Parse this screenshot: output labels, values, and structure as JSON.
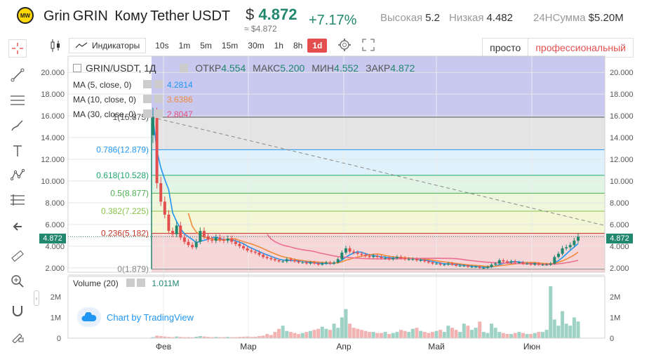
{
  "header": {
    "logo_text": "MW",
    "coin_name": "Grin",
    "coin_ticker": "GRIN",
    "vs_label": "Кому",
    "vs_name": "Tether",
    "vs_ticker": "USDT",
    "price_symbol": "$",
    "price": "4.872",
    "price_sub": "≈ $4.872",
    "change": "+7.17%",
    "high_label": "Высокая",
    "high": "5.2",
    "low_label": "Низкая",
    "low": "4.482",
    "vol_label": "24HСумма",
    "vol": "$5.20M"
  },
  "toolbar": {
    "indicators_label": "Индикаторы",
    "intervals": [
      "10s",
      "1m",
      "5m",
      "15m",
      "30m",
      "1h",
      "8h",
      "1d"
    ],
    "active_interval": "1d"
  },
  "mode": {
    "simple": "просто",
    "pro": "профессиональный"
  },
  "legend": {
    "symbol": "GRIN/USDT, 1Д",
    "open_label": "ОТКР",
    "open": "4.554",
    "high_label": "МАКС",
    "high": "5.200",
    "low_label": "МИН",
    "low": "4.552",
    "close_label": "ЗАКР",
    "close": "4.872",
    "ma5_label": "MA (5, close, 0)",
    "ma5": "4.2814",
    "ma10_label": "MA (10, close, 0)",
    "ma10": "3.6386",
    "ma30_label": "MA (30, close, 0)",
    "ma30": "2.8047",
    "volume_label": "Volume (20)",
    "volume": "1.011M",
    "watermark": "Chart by TradingView",
    "last_price_tag": "4.872"
  },
  "colors": {
    "up": "#21876e",
    "down": "#e34f4f",
    "ma5": "#2196f3",
    "ma10": "#f08a3c",
    "ma30": "#ec6f91",
    "band_top": "#c9c9f0"
  },
  "chart_data": {
    "type": "candlestick",
    "y_ticks": [
      "20.000",
      "18.000",
      "16.000",
      "14.000",
      "12.000",
      "10.000",
      "8.000",
      "6.000",
      "4.000",
      "2.000"
    ],
    "x_ticks": [
      "Фев",
      "Мар",
      "Апр",
      "Май",
      "Июн"
    ],
    "volume_ticks": [
      "2M",
      "1M",
      "0"
    ],
    "ylim": [
      1.6,
      21.5
    ],
    "fib_levels": [
      {
        "label": "1(15.875)",
        "value": 15.875,
        "color": "#555555",
        "fill": "#e4e4e4"
      },
      {
        "label": "0.786(12.879)",
        "value": 12.879,
        "color": "#2196f3",
        "fill": "#dff1fb"
      },
      {
        "label": "0.618(10.528)",
        "value": 10.528,
        "color": "#21a86e",
        "fill": "#e2f5e4"
      },
      {
        "label": "0.5(8.877)",
        "value": 8.877,
        "color": "#4caf50",
        "fill": "#eef7dc"
      },
      {
        "label": "0.382(7.225)",
        "value": 7.225,
        "color": "#8bc34a",
        "fill": "#f3f7d6"
      },
      {
        "label": "0.236(5.182)",
        "value": 5.182,
        "color": "#c0392b",
        "fill": "#f6d6d6"
      },
      {
        "label": "0(1.879)",
        "value": 1.879,
        "color": "#888888",
        "fill": "#f6d6d6"
      }
    ],
    "close_series": [
      15.8,
      9.8,
      8.1,
      6.9,
      5.4,
      5.1,
      5.9,
      4.8,
      4.4,
      4.1,
      3.9,
      4.4,
      5.4,
      4.9,
      4.6,
      4.5,
      4.8,
      4.6,
      4.5,
      4.7,
      4.4,
      4.2,
      4.0,
      3.8,
      3.6,
      3.5,
      3.4,
      3.2,
      3.0,
      2.9,
      2.8,
      2.7,
      2.6,
      2.6,
      2.8,
      2.7,
      2.6,
      2.5,
      2.5,
      2.4,
      2.5,
      2.4,
      2.3,
      2.4,
      2.5,
      2.4,
      2.5,
      2.8,
      3.4,
      3.8,
      3.5,
      3.4,
      3.3,
      3.2,
      3.1,
      3.0,
      3.1,
      3.0,
      2.9,
      2.9,
      2.8,
      2.9,
      3.0,
      2.9,
      2.8,
      2.8,
      2.8,
      2.7,
      2.7,
      2.6,
      2.5,
      2.4,
      2.4,
      2.3,
      2.3,
      2.4,
      2.3,
      2.2,
      2.2,
      2.2,
      2.1,
      2.1,
      2.1,
      2.0,
      2.0,
      2.1,
      2.3,
      2.4,
      2.7,
      2.6,
      2.5,
      2.6,
      2.5,
      2.5,
      2.4,
      2.4,
      2.3,
      2.4,
      2.3,
      2.3,
      2.3,
      2.4,
      3.0,
      3.3,
      3.8,
      3.9,
      4.1,
      4.5,
      4.872
    ],
    "volume_series": [
      0.05,
      0.12,
      0.1,
      0.08,
      0.06,
      0.05,
      0.08,
      0.06,
      0.05,
      0.05,
      0.04,
      0.07,
      0.1,
      0.08,
      0.06,
      0.05,
      0.06,
      0.05,
      0.05,
      0.06,
      0.05,
      0.05,
      0.06,
      0.07,
      0.08,
      0.06,
      0.07,
      0.1,
      0.12,
      0.2,
      0.15,
      0.3,
      0.45,
      0.6,
      0.35,
      0.3,
      0.25,
      0.2,
      0.25,
      0.3,
      0.35,
      0.4,
      0.45,
      0.55,
      0.45,
      0.4,
      0.7,
      0.5,
      1.0,
      1.4,
      0.7,
      0.5,
      0.45,
      0.4,
      0.35,
      0.3,
      0.3,
      0.25,
      0.25,
      0.3,
      0.2,
      0.25,
      0.3,
      0.4,
      0.35,
      0.3,
      0.45,
      0.5,
      0.35,
      0.3,
      0.25,
      0.3,
      0.35,
      0.4,
      0.3,
      0.6,
      0.5,
      0.4,
      0.3,
      0.7,
      0.6,
      0.4,
      0.5,
      0.8,
      0.3,
      0.25,
      0.7,
      0.5,
      0.3,
      0.25,
      0.2,
      0.2,
      0.25,
      0.3,
      0.25,
      0.2,
      0.2,
      0.25,
      0.3,
      0.3,
      0.4,
      2.5,
      0.9,
      0.6,
      1.3,
      0.7,
      0.6,
      1.0,
      0.8
    ],
    "volume_ylim": [
      0,
      2.5
    ]
  }
}
